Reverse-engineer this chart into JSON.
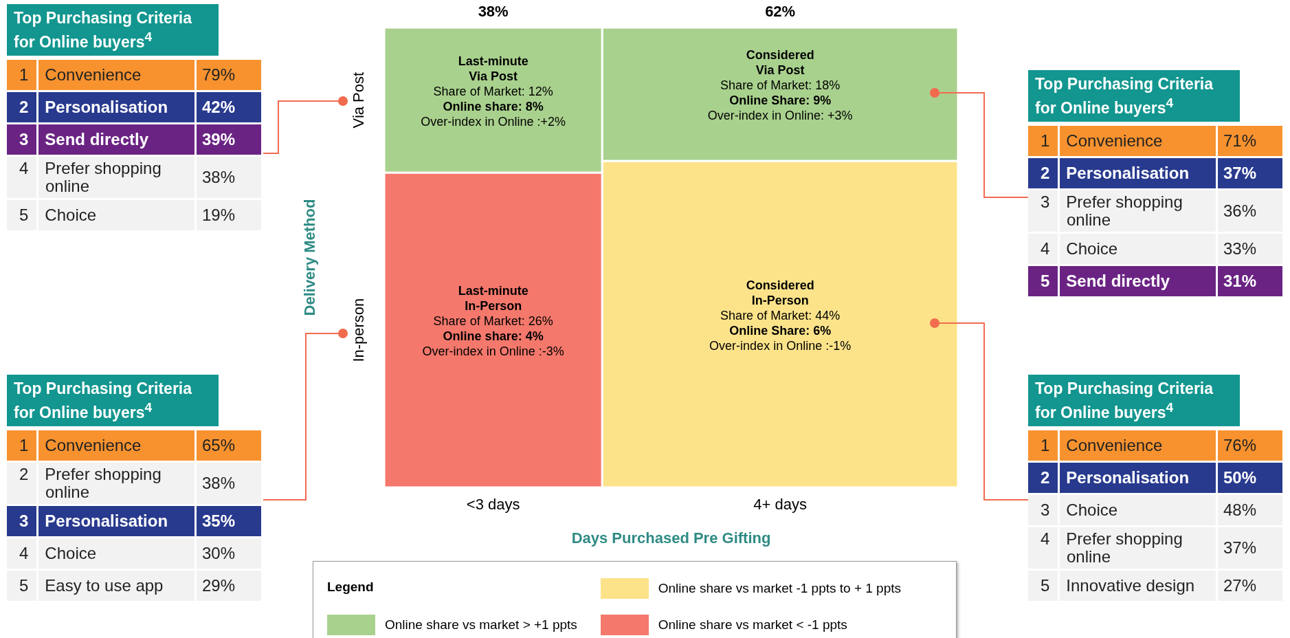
{
  "chart_data": [
    {
      "type": "other",
      "title": "Top Purchasing Criteria for Online buyers$^{4}$",
      "annotations": [
        "1",
        "2",
        "3",
        "4",
        "5"
      ],
      "categories": [
        "Convenience",
        "Personalisation",
        "Send directly",
        "Prefer shopping online",
        "Choice"
      ],
      "value_labels": [
        "79%",
        "42%",
        "39%",
        "38%",
        "19%"
      ],
      "colors": [
        "#f7922f",
        "#283a8e",
        "#6a2383",
        "#f2f2f2",
        "#f2f2f2"
      ]
    },
    {
      "type": "other",
      "categories": [
        "<3 days",
        "4+ days"
      ],
      "values": [
        38,
        62
      ],
      "value_labels": [
        "38%",
        "62%"
      ],
      "y_categories": [
        "Via Post",
        "In-person"
      ],
      "xlabel": "Days Purchased Pre Gifting",
      "ylabel": "Delivery Method",
      "legend": "bottom",
      "legend_title": "Legend",
      "series": [
        {
          "name": "Online share vs market > +1 ppts",
          "color": "#a9d18e",
          "values": [
            12,
            18
          ],
          "value_labels": [
            "Last-minute\nVia Post\nShare of Market: 12%\nOnline share: 8%\nOver-index in Online :+2%",
            "Considered\nVia Post\nShare of Market: 18%\nOnline Share: 9%\nOver-index in Online: +3%"
          ]
        },
        {
          "name": "Online share vs market -1 ppts to + 1 ppts",
          "color": "#fce38a",
          "values": [
            null,
            44
          ],
          "value_labels": [
            null,
            "Considered\nIn-Person\nShare of Market: 44%\nOnline Share: 6%\nOver-index in Online :-1%"
          ]
        },
        {
          "name": "Online share vs market < -1 ppts",
          "color": "#f4786c",
          "values": [
            26,
            null
          ],
          "value_labels": [
            "Last-minute\nIn-Person\nShare of Market: 26%\nOnline share: 4%\nOver-index in Online :-3%",
            null
          ]
        }
      ]
    },
    {
      "type": "other",
      "title": "Top Purchasing Criteria for Online buyers$^{4}$",
      "annotations": [
        "1",
        "2",
        "3",
        "4",
        "5"
      ],
      "categories": [
        "Convenience",
        "Personalisation",
        "Prefer shopping online",
        "Choice",
        "Send directly"
      ],
      "value_labels": [
        "71%",
        "37%",
        "36%",
        "33%",
        "31%"
      ],
      "colors": [
        "#f7922f",
        "#283a8e",
        "#f2f2f2",
        "#f2f2f2",
        "#6a2383"
      ]
    },
    {
      "type": "other",
      "title": "Top Purchasing Criteria for Online buyers$^{4}$",
      "annotations": [
        "1",
        "2",
        "3",
        "4",
        "5"
      ],
      "categories": [
        "Convenience",
        "Prefer shopping online",
        "Personalisation",
        "Choice",
        "Easy to use app"
      ],
      "value_labels": [
        "65%",
        "38%",
        "35%",
        "30%",
        "29%"
      ],
      "colors": [
        "#f7922f",
        "#f2f2f2",
        "#283a8e",
        "#f2f2f2",
        "#f2f2f2"
      ]
    },
    {
      "type": "other",
      "title": "Top Purchasing Criteria for Online buyers$^{4}$",
      "annotations": [
        "1",
        "2",
        "3",
        "4",
        "5"
      ],
      "categories": [
        "Convenience",
        "Personalisation",
        "Choice",
        "Prefer shopping online",
        "Innovative design"
      ],
      "value_labels": [
        "76%",
        "50%",
        "48%",
        "37%",
        "27%"
      ],
      "colors": [
        "#f7922f",
        "#283a8e",
        "#f2f2f2",
        "#f2f2f2",
        "#f2f2f2"
      ]
    }
  ]
}
